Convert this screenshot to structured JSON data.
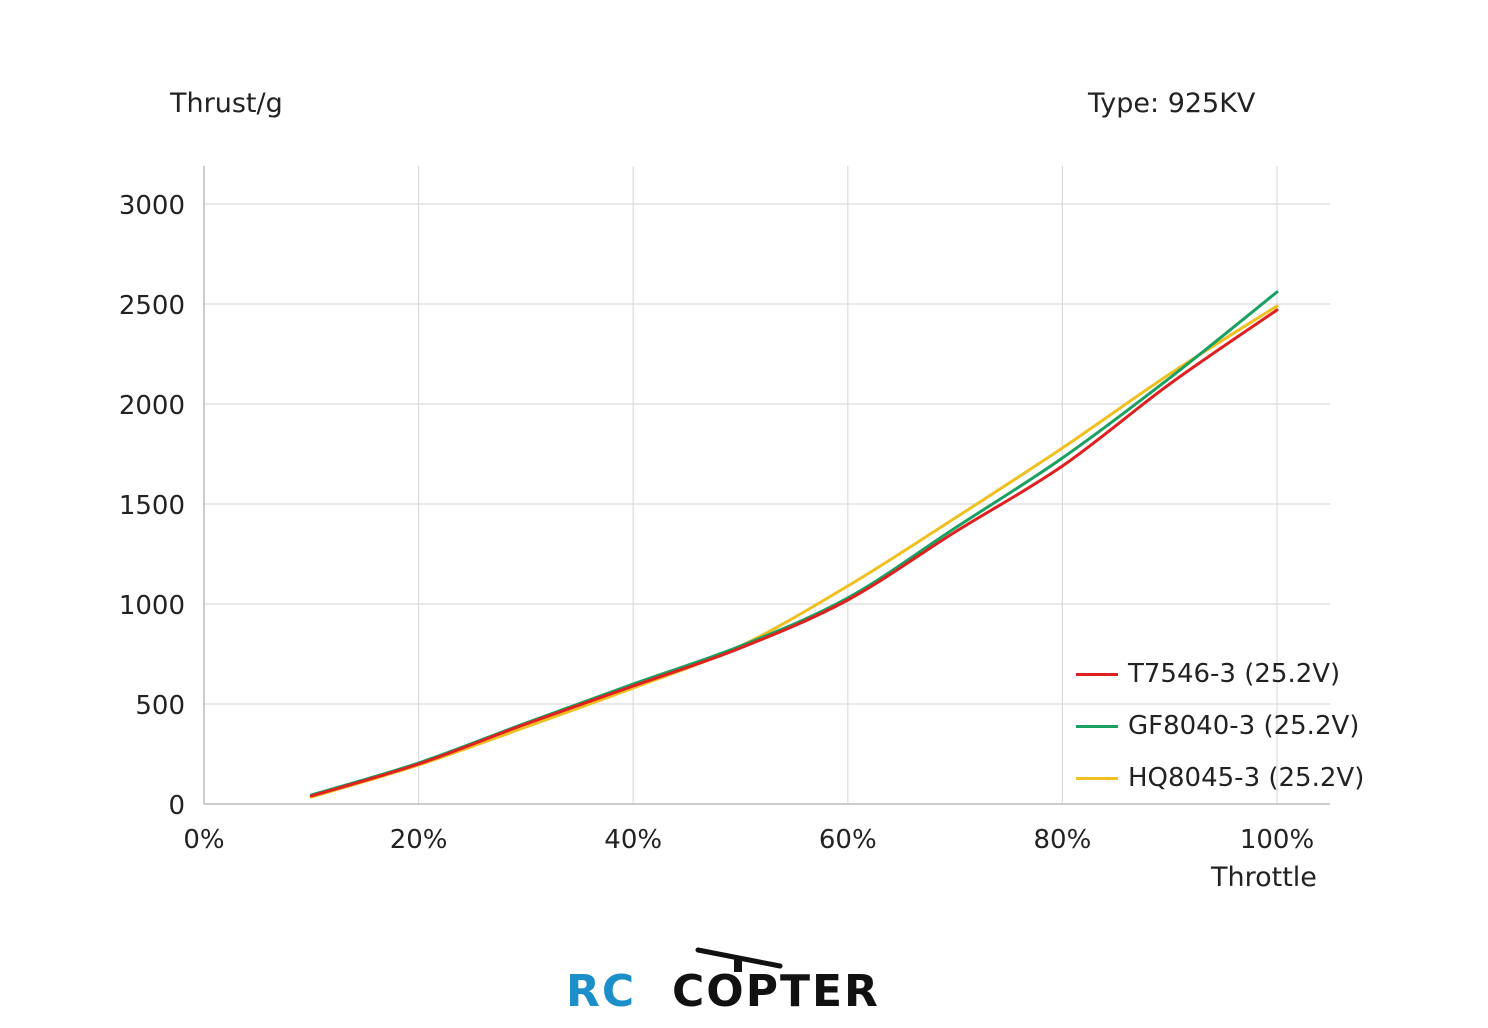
{
  "header": {
    "y_axis_title": "Thrust/g",
    "type_label": "Type: 925KV"
  },
  "x_axis_title": "Throttle",
  "colors": {
    "T7546": "#e02020",
    "GF8040": "#1aa060",
    "HQ8045": "#f0c020",
    "grid": "#dcdcdc",
    "axis": "#bbbbbb",
    "logo_blue": "#1a8fc9",
    "logo_black": "#111111"
  },
  "logo": {
    "part1": "RC",
    "part2": "COPTER"
  },
  "chart_data": {
    "type": "line",
    "x_ticks": [
      "0%",
      "20%",
      "40%",
      "60%",
      "80%",
      "100%"
    ],
    "y_ticks": [
      "0",
      "500",
      "1000",
      "1500",
      "2000",
      "2500",
      "3000"
    ],
    "xlim": [
      0,
      100
    ],
    "ylim": [
      0,
      3000
    ],
    "grid": true,
    "legend_position": "bottom-right",
    "xlabel": "Throttle",
    "ylabel": "Thrust/g",
    "x": [
      10,
      20,
      30,
      40,
      50,
      60,
      70,
      80,
      90,
      100
    ],
    "series": [
      {
        "name": "T7546-3 (25.2V)",
        "color": "#e02020",
        "values": [
          40,
          200,
          400,
          590,
          780,
          1020,
          1360,
          1690,
          2100,
          2470
        ]
      },
      {
        "name": "GF8040-3 (25.2V)",
        "color": "#1aa060",
        "values": [
          45,
          205,
          405,
          600,
          790,
          1030,
          1380,
          1730,
          2130,
          2560
        ]
      },
      {
        "name": "HQ8045-3 (25.2V)",
        "color": "#f0c020",
        "values": [
          35,
          195,
          385,
          580,
          790,
          1090,
          1430,
          1780,
          2150,
          2490
        ]
      }
    ]
  }
}
